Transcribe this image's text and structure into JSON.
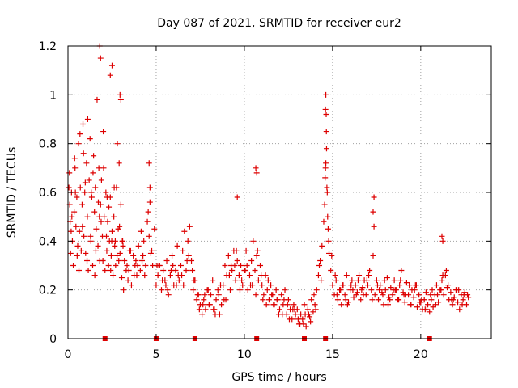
{
  "chart_data": {
    "type": "scatter",
    "title": "Day 087 of 2021, SRMTID for receiver eur2",
    "xlabel": "GPS time / hours",
    "ylabel": "SRMTID / TECUs",
    "xlim": [
      0,
      24
    ],
    "ylim": [
      0,
      1.2
    ],
    "grid": true,
    "x_ticks": [
      0,
      5,
      10,
      15,
      20
    ],
    "x_tick_labels": [
      "0",
      "5",
      "10",
      "15",
      "20"
    ],
    "y_ticks": [
      0,
      0.2,
      0.4,
      0.6,
      0.8,
      1.0,
      1.2
    ],
    "y_tick_labels": [
      "0",
      "0.2",
      "0.4",
      "0.6",
      "0.8",
      "1",
      "1.2"
    ],
    "marker": "+",
    "series": [
      {
        "name": "SRMTID",
        "color": "#dd0000",
        "x": [
          0.05,
          0.1,
          0.12,
          0.15,
          0.2,
          0.25,
          0.3,
          0.35,
          0.4,
          0.45,
          0.5,
          0.55,
          0.6,
          0.65,
          0.7,
          0.75,
          0.8,
          0.85,
          0.9,
          0.95,
          1.0,
          1.05,
          1.1,
          1.15,
          1.2,
          1.25,
          1.3,
          1.35,
          1.4,
          1.45,
          1.5,
          1.55,
          1.6,
          1.65,
          1.7,
          1.75,
          1.8,
          1.85,
          1.9,
          1.95,
          2.0,
          2.05,
          2.1,
          2.15,
          2.2,
          2.25,
          2.3,
          2.35,
          2.4,
          2.45,
          2.5,
          2.55,
          2.6,
          2.65,
          2.7,
          2.75,
          2.8,
          2.85,
          2.9,
          2.95,
          3.0,
          3.05,
          3.1,
          3.15,
          3.2,
          3.3,
          3.4,
          3.5,
          3.6,
          3.7,
          3.8,
          3.9,
          4.0,
          4.1,
          4.2,
          4.3,
          4.4,
          4.5,
          4.6,
          4.7,
          4.8,
          4.9,
          5.0,
          5.1,
          5.2,
          5.3,
          5.4,
          5.5,
          5.6,
          5.7,
          5.8,
          5.9,
          6.0,
          6.1,
          6.2,
          6.3,
          6.4,
          6.5,
          6.6,
          6.7,
          6.8,
          6.9,
          7.0,
          7.1,
          7.2,
          7.3,
          7.4,
          7.5,
          7.6,
          7.7,
          7.8,
          7.9,
          8.0,
          8.1,
          8.2,
          8.3,
          8.4,
          8.5,
          8.6,
          8.7,
          8.8,
          8.9,
          9.0,
          9.1,
          9.2,
          9.3,
          9.4,
          9.5,
          9.6,
          9.7,
          9.8,
          9.9,
          10.0,
          10.1,
          10.2,
          10.3,
          10.4,
          10.5,
          10.6,
          10.7,
          10.8,
          10.9,
          11.0,
          11.1,
          11.2,
          11.3,
          11.4,
          11.5,
          11.6,
          11.7,
          11.8,
          11.9,
          12.0,
          12.1,
          12.2,
          12.3,
          12.4,
          12.5,
          12.6,
          12.7,
          12.8,
          12.9,
          13.0,
          13.1,
          13.2,
          13.3,
          13.4,
          13.5,
          13.6,
          13.7,
          13.8,
          13.9,
          14.0,
          14.1,
          14.2,
          14.3,
          14.4,
          14.5,
          14.55,
          14.6,
          14.65,
          14.7,
          14.75,
          14.8,
          14.9,
          15.0,
          15.1,
          15.2,
          15.3,
          15.4,
          15.5,
          15.6,
          15.7,
          15.8,
          15.9,
          16.0,
          16.1,
          16.2,
          16.3,
          16.4,
          16.5,
          16.6,
          16.7,
          16.8,
          16.9,
          17.0,
          17.1,
          17.2,
          17.3,
          17.4,
          17.5,
          17.6,
          17.7,
          17.8,
          17.9,
          18.0,
          18.1,
          18.2,
          18.3,
          18.4,
          18.5,
          18.6,
          18.7,
          18.8,
          18.9,
          19.0,
          19.1,
          19.2,
          19.3,
          19.4,
          19.5,
          19.6,
          19.7,
          19.8,
          19.9,
          20.0,
          20.1,
          20.2,
          20.3,
          20.4,
          20.5,
          20.6,
          20.7,
          20.8,
          20.9,
          21.0,
          21.1,
          21.2,
          21.3,
          21.4,
          21.5,
          21.6,
          21.7,
          21.8,
          21.9,
          22.0,
          22.1,
          22.2,
          22.3,
          22.4,
          22.5,
          22.6,
          22.7,
          0.08,
          0.22,
          0.38,
          0.52,
          0.68,
          0.82,
          0.98,
          1.12,
          1.28,
          1.42,
          1.58,
          1.72,
          1.88,
          2.02,
          2.18,
          2.32,
          2.48,
          2.62,
          2.78,
          2.92,
          3.08,
          3.35,
          3.55,
          3.75,
          3.95,
          4.15,
          4.35,
          4.55,
          4.75,
          5.05,
          5.35,
          5.65,
          5.95,
          6.25,
          6.55,
          6.85,
          7.15,
          7.45,
          7.75,
          8.05,
          8.35,
          8.65,
          8.95,
          9.25,
          9.55,
          9.85,
          10.15,
          10.45,
          10.75,
          11.05,
          11.35,
          11.65,
          11.95,
          12.25,
          12.55,
          12.85,
          13.15,
          13.45,
          13.75,
          14.05,
          14.35,
          14.62,
          14.68,
          14.72,
          14.95,
          15.25,
          15.55,
          15.85,
          16.15,
          16.45,
          16.75,
          17.05,
          17.35,
          17.65,
          17.95,
          18.25,
          18.55,
          18.85,
          19.15,
          19.45,
          19.75,
          20.05,
          20.35,
          20.65,
          20.95,
          21.25,
          21.55,
          21.85,
          22.15,
          22.45,
          0.18,
          0.42,
          0.62,
          0.88,
          1.08,
          1.32,
          1.52,
          1.78,
          1.98,
          2.22,
          2.42,
          2.68,
          2.88,
          3.12,
          3.45,
          3.85,
          4.25,
          4.65,
          5.15,
          5.55,
          5.85,
          6.15,
          6.45,
          6.75,
          7.05,
          7.35,
          7.65,
          7.95,
          8.25,
          8.55,
          8.85,
          9.15,
          9.45,
          9.75,
          10.05,
          10.35,
          10.65,
          10.95,
          11.25,
          11.55,
          11.85,
          12.15,
          12.45,
          12.75,
          13.05,
          13.35,
          13.65,
          13.95,
          14.25,
          14.58,
          14.66,
          14.78,
          15.15,
          15.45,
          15.75,
          16.05,
          16.35,
          16.65,
          16.95,
          17.25,
          17.55,
          17.85,
          18.15,
          18.45,
          18.75,
          19.05,
          19.35,
          19.65,
          19.95,
          20.25,
          20.55,
          20.85,
          21.15,
          21.45,
          21.75,
          22.05,
          22.35,
          22.65,
          1.8,
          1.85,
          2.4,
          2.5,
          2.95,
          3.0,
          4.6,
          4.65,
          9.6,
          10.65,
          10.7,
          14.6,
          14.62,
          14.64,
          17.3,
          17.35,
          21.2,
          21.25
        ],
        "y": [
          0.62,
          0.55,
          0.48,
          0.35,
          0.6,
          0.4,
          0.3,
          0.52,
          0.7,
          0.46,
          0.58,
          0.38,
          0.8,
          0.44,
          0.62,
          0.36,
          0.55,
          0.88,
          0.42,
          0.6,
          0.35,
          0.72,
          0.5,
          0.28,
          0.65,
          0.82,
          0.4,
          0.58,
          0.3,
          0.75,
          0.52,
          0.62,
          0.45,
          0.98,
          0.38,
          0.7,
          0.32,
          0.55,
          0.65,
          0.42,
          0.85,
          0.5,
          0.28,
          0.6,
          0.36,
          0.48,
          0.3,
          0.4,
          0.58,
          0.34,
          0.44,
          0.26,
          0.5,
          0.38,
          0.3,
          0.62,
          0.8,
          0.45,
          0.72,
          0.35,
          0.55,
          0.25,
          0.4,
          0.2,
          0.32,
          0.28,
          0.24,
          0.36,
          0.22,
          0.34,
          0.3,
          0.26,
          0.38,
          0.28,
          0.32,
          0.4,
          0.3,
          0.48,
          0.42,
          0.35,
          0.3,
          0.45,
          0.22,
          0.26,
          0.3,
          0.2,
          0.28,
          0.24,
          0.32,
          0.18,
          0.26,
          0.34,
          0.22,
          0.28,
          0.38,
          0.24,
          0.3,
          0.36,
          0.44,
          0.28,
          0.4,
          0.46,
          0.32,
          0.2,
          0.24,
          0.16,
          0.18,
          0.14,
          0.1,
          0.16,
          0.12,
          0.2,
          0.14,
          0.18,
          0.24,
          0.12,
          0.16,
          0.2,
          0.1,
          0.14,
          0.22,
          0.3,
          0.26,
          0.34,
          0.2,
          0.28,
          0.36,
          0.24,
          0.32,
          0.26,
          0.3,
          0.22,
          0.28,
          0.36,
          0.2,
          0.26,
          0.32,
          0.4,
          0.28,
          0.34,
          0.24,
          0.3,
          0.22,
          0.18,
          0.26,
          0.2,
          0.16,
          0.22,
          0.18,
          0.14,
          0.2,
          0.16,
          0.12,
          0.18,
          0.14,
          0.2,
          0.1,
          0.16,
          0.12,
          0.08,
          0.14,
          0.1,
          0.12,
          0.06,
          0.1,
          0.08,
          0.14,
          0.05,
          0.12,
          0.09,
          0.16,
          0.11,
          0.14,
          0.2,
          0.26,
          0.32,
          0.38,
          0.48,
          0.55,
          0.7,
          0.85,
          0.6,
          0.45,
          0.35,
          0.28,
          0.22,
          0.18,
          0.24,
          0.16,
          0.2,
          0.14,
          0.22,
          0.18,
          0.26,
          0.15,
          0.2,
          0.24,
          0.17,
          0.22,
          0.19,
          0.26,
          0.16,
          0.21,
          0.24,
          0.18,
          0.22,
          0.28,
          0.2,
          0.34,
          0.18,
          0.24,
          0.16,
          0.22,
          0.19,
          0.14,
          0.2,
          0.25,
          0.17,
          0.21,
          0.18,
          0.24,
          0.2,
          0.16,
          0.22,
          0.28,
          0.19,
          0.15,
          0.23,
          0.18,
          0.14,
          0.2,
          0.17,
          0.22,
          0.13,
          0.18,
          0.15,
          0.12,
          0.16,
          0.19,
          0.14,
          0.11,
          0.16,
          0.13,
          0.18,
          0.22,
          0.15,
          0.2,
          0.24,
          0.18,
          0.26,
          0.21,
          0.16,
          0.19,
          0.14,
          0.17,
          0.2,
          0.15,
          0.12,
          0.18,
          0.16,
          0.19,
          0.14,
          0.17,
          0.68,
          0.5,
          0.74,
          0.34,
          0.84,
          0.46,
          0.64,
          0.9,
          0.42,
          0.68,
          0.36,
          0.56,
          0.48,
          0.7,
          0.42,
          0.54,
          0.4,
          0.62,
          0.34,
          0.46,
          0.4,
          0.3,
          0.36,
          0.26,
          0.3,
          0.44,
          0.26,
          0.52,
          0.36,
          0.3,
          0.24,
          0.2,
          0.3,
          0.26,
          0.22,
          0.34,
          0.24,
          0.12,
          0.18,
          0.14,
          0.1,
          0.22,
          0.16,
          0.3,
          0.36,
          0.24,
          0.3,
          0.22,
          0.36,
          0.16,
          0.24,
          0.14,
          0.1,
          0.16,
          0.08,
          0.12,
          0.06,
          0.1,
          0.07,
          0.12,
          0.24,
          0.72,
          0.62,
          0.5,
          0.34,
          0.18,
          0.22,
          0.14,
          0.2,
          0.24,
          0.18,
          0.26,
          0.46,
          0.2,
          0.24,
          0.16,
          0.2,
          0.24,
          0.18,
          0.14,
          0.22,
          0.16,
          0.12,
          0.2,
          0.18,
          0.26,
          0.22,
          0.16,
          0.2,
          0.18,
          0.44,
          0.6,
          0.28,
          0.76,
          0.32,
          0.6,
          0.26,
          0.5,
          0.32,
          0.58,
          0.28,
          0.4,
          0.32,
          0.38,
          0.28,
          0.32,
          0.34,
          0.56,
          0.3,
          0.22,
          0.28,
          0.22,
          0.26,
          0.32,
          0.28,
          0.18,
          0.14,
          0.2,
          0.12,
          0.18,
          0.16,
          0.26,
          0.3,
          0.2,
          0.28,
          0.22,
          0.18,
          0.26,
          0.14,
          0.18,
          0.16,
          0.1,
          0.14,
          0.12,
          0.08,
          0.06,
          0.1,
          0.18,
          0.3,
          0.66,
          0.78,
          0.4,
          0.26,
          0.2,
          0.16,
          0.22,
          0.18,
          0.2,
          0.24,
          0.16,
          0.22,
          0.18,
          0.14,
          0.2,
          0.16,
          0.18,
          0.22,
          0.2,
          0.15,
          0.12,
          0.18,
          0.14,
          0.2,
          0.28,
          0.16,
          0.2,
          0.14,
          0.18,
          1.2,
          1.15,
          1.08,
          1.12,
          1.0,
          0.98,
          0.72,
          0.62,
          0.58,
          0.7,
          0.68,
          0.94,
          1.0,
          0.92,
          0.52,
          0.58,
          0.42,
          0.4
        ]
      }
    ],
    "missing_data_x": [
      2.1,
      5.0,
      7.2,
      10.7,
      13.4,
      14.6,
      20.5
    ]
  }
}
